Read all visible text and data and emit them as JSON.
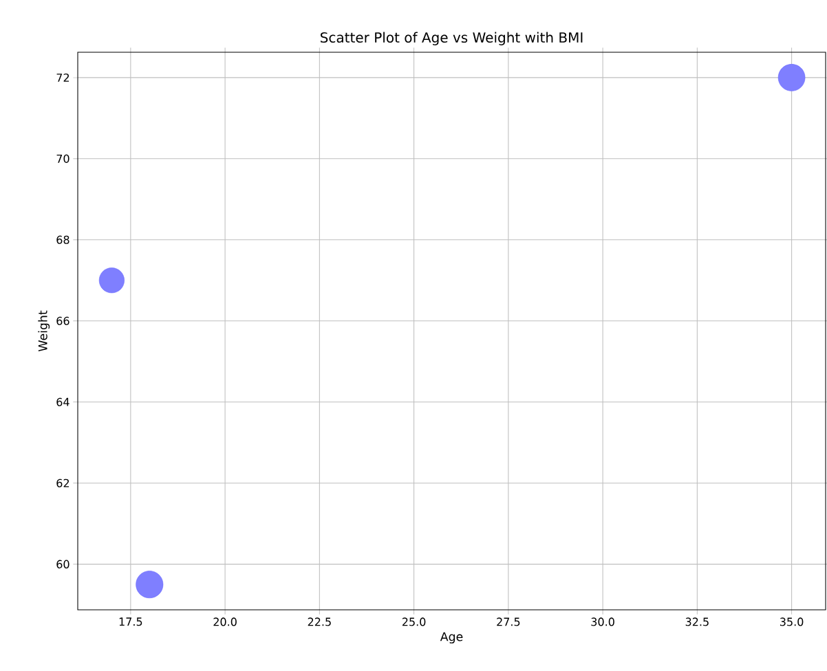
{
  "chart_data": {
    "type": "bubble",
    "title": "Scatter Plot of Age vs Weight with BMI",
    "xlabel": "Age",
    "ylabel": "Weight",
    "series": [
      {
        "color": "#7f7fff",
        "x": [
          17,
          18,
          35
        ],
        "values": [
          67,
          59.5,
          72
        ],
        "sizes": [
          0.86,
          1,
          0.98
        ]
      }
    ],
    "xlim": [
      16.1,
      35.9
    ],
    "ylim": [
      58.875,
      72.625
    ],
    "xticks": [
      17.5,
      {
        "value": 20,
        "label": "20.0"
      },
      22.5,
      {
        "value": 25,
        "label": "25.0"
      },
      27.5,
      {
        "value": 30,
        "label": "30.0"
      },
      32.5,
      {
        "value": 35,
        "label": "35.0"
      }
    ],
    "yticks": [
      60,
      62,
      64,
      66,
      68,
      70,
      72
    ],
    "grid": true,
    "marker": "circle"
  }
}
